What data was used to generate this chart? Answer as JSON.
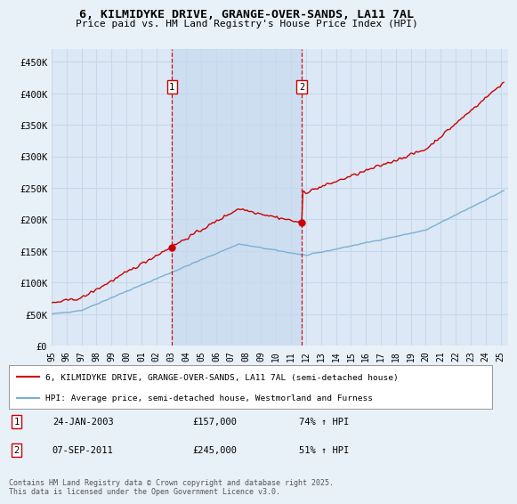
{
  "title": "6, KILMIDYKE DRIVE, GRANGE-OVER-SANDS, LA11 7AL",
  "subtitle": "Price paid vs. HM Land Registry's House Price Index (HPI)",
  "bg_color": "#e8f0f8",
  "plot_bg_color": "#dce8f5",
  "grid_color": "#c8d8e8",
  "shade_color": "#c8daf0",
  "sale1_price": 157000,
  "sale1_label": "1",
  "sale1_hpi_pct": "74% ↑ HPI",
  "sale1_date_str": "24-JAN-2003",
  "sale2_price": 245000,
  "sale2_label": "2",
  "sale2_hpi_pct": "51% ↑ HPI",
  "sale2_date_str": "07-SEP-2011",
  "red_line_color": "#cc0000",
  "blue_line_color": "#7ab0d4",
  "ylim": [
    0,
    470000
  ],
  "yticks": [
    0,
    50000,
    100000,
    150000,
    200000,
    250000,
    300000,
    350000,
    400000,
    450000
  ],
  "legend_line1": "6, KILMIDYKE DRIVE, GRANGE-OVER-SANDS, LA11 7AL (semi-detached house)",
  "legend_line2": "HPI: Average price, semi-detached house, Westmorland and Furness",
  "footer": "Contains HM Land Registry data © Crown copyright and database right 2025.\nThis data is licensed under the Open Government Licence v3.0."
}
